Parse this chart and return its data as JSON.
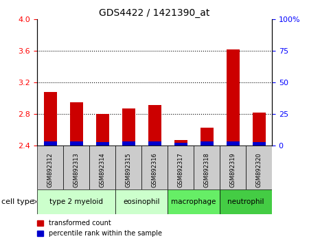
{
  "title": "GDS4422 / 1421390_at",
  "samples": [
    "GSM892312",
    "GSM892313",
    "GSM892314",
    "GSM892315",
    "GSM892316",
    "GSM892317",
    "GSM892318",
    "GSM892319",
    "GSM892320"
  ],
  "red_values": [
    3.08,
    2.95,
    2.8,
    2.87,
    2.92,
    2.47,
    2.63,
    3.62,
    2.82
  ],
  "blue_values": [
    0.055,
    0.055,
    0.05,
    0.055,
    0.055,
    0.04,
    0.055,
    0.055,
    0.05
  ],
  "baseline": 2.4,
  "ylim_left": [
    2.4,
    4.0
  ],
  "ylim_right": [
    0,
    100
  ],
  "yticks_left": [
    2.4,
    2.8,
    3.2,
    3.6,
    4.0
  ],
  "yticks_right": [
    0,
    25,
    50,
    75,
    100
  ],
  "ytick_labels_right": [
    "0",
    "25",
    "50",
    "75",
    "100%"
  ],
  "cell_types": [
    {
      "label": "type 2 myeloid",
      "start": 0,
      "end": 3,
      "color": "#ccffcc"
    },
    {
      "label": "eosinophil",
      "start": 3,
      "end": 5,
      "color": "#ccffcc"
    },
    {
      "label": "macrophage",
      "start": 5,
      "end": 7,
      "color": "#66ee66"
    },
    {
      "label": "neutrophil",
      "start": 7,
      "end": 9,
      "color": "#44cc44"
    }
  ],
  "bar_width": 0.5,
  "red_color": "#cc0000",
  "blue_color": "#0000cc",
  "legend_red": "transformed count",
  "legend_blue": "percentile rank within the sample",
  "grid_color": "#000000",
  "background_color": "#ffffff",
  "cell_type_label": "cell type",
  "sample_box_color": "#cccccc"
}
